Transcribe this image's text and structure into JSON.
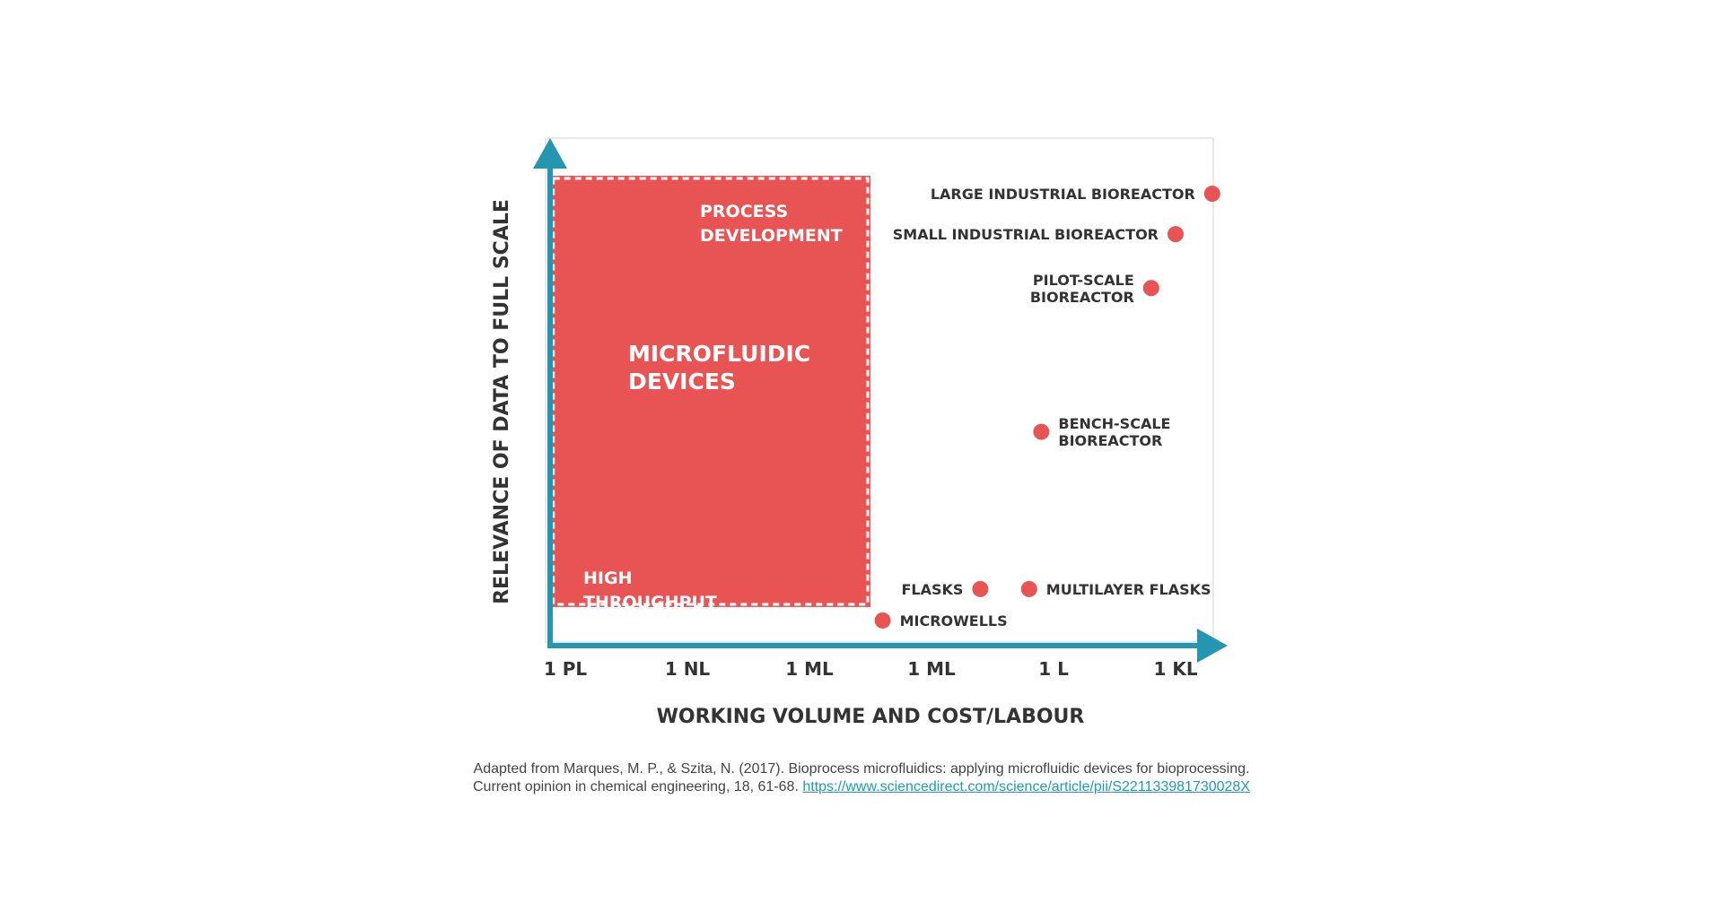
{
  "colors": {
    "axis": "#2596b0",
    "box_fill": "#e85454",
    "marker": "#e85454",
    "label_dark": "#333333",
    "label_light": "#ffffff",
    "frame": "#e8e8e8"
  },
  "chart_data": {
    "type": "scatter",
    "xlabel": "WORKING VOLUME AND COST/LABOUR",
    "ylabel": "RELEVANCE OF DATA TO FULL SCALE",
    "x_ticks": [
      "1 PL",
      "1 NL",
      "1 ML",
      "1 ML",
      "1 L",
      "1 KL"
    ],
    "y_range": [
      0,
      1
    ],
    "grid": false,
    "region": {
      "x_range": [
        -0.12,
        2.5
      ],
      "y_range": [
        0.04,
        1.0
      ],
      "title": [
        "MICROFLUIDIC",
        "DEVICES"
      ],
      "top_note": [
        "PROCESS",
        "DEVELOPMENT"
      ],
      "bottom_note": [
        "HIGH",
        "THROUGHPUT"
      ]
    },
    "points": [
      {
        "name": "LARGE INDUSTRIAL BIOREACTOR",
        "lines": [
          "LARGE INDUSTRIAL BIOREACTOR"
        ],
        "x": 5.3,
        "y": 0.96,
        "side": "left"
      },
      {
        "name": "SMALL INDUSTRIAL BIOREACTOR",
        "lines": [
          "SMALL INDUSTRIAL BIOREACTOR"
        ],
        "x": 5.0,
        "y": 0.87,
        "side": "left"
      },
      {
        "name": "PILOT-SCALE BIOREACTOR",
        "lines": [
          "PILOT-SCALE",
          "BIOREACTOR"
        ],
        "x": 4.8,
        "y": 0.75,
        "side": "left"
      },
      {
        "name": "BENCH-SCALE BIOREACTOR",
        "lines": [
          "BENCH-SCALE",
          "BIOREACTOR"
        ],
        "x": 3.9,
        "y": 0.43,
        "side": "right"
      },
      {
        "name": "FLASKS",
        "lines": [
          "FLASKS"
        ],
        "x": 3.4,
        "y": 0.08,
        "side": "left"
      },
      {
        "name": "MULTILAYER FLASKS",
        "lines": [
          "MULTILAYER FLASKS"
        ],
        "x": 3.8,
        "y": 0.08,
        "side": "right"
      },
      {
        "name": "MICROWELLS",
        "lines": [
          "MICROWELLS"
        ],
        "x": 2.6,
        "y": 0.01,
        "side": "right"
      }
    ]
  },
  "caption": {
    "line1": "Adapted from Marques, M. P., & Szita, N. (2017). Bioprocess microfluidics: applying microfluidic devices for bioprocessing.",
    "line2": "Current opinion in chemical engineering, 18, 61-68.",
    "link": "https://www.sciencedirect.com/science/article/pii/S221133981730028X"
  }
}
